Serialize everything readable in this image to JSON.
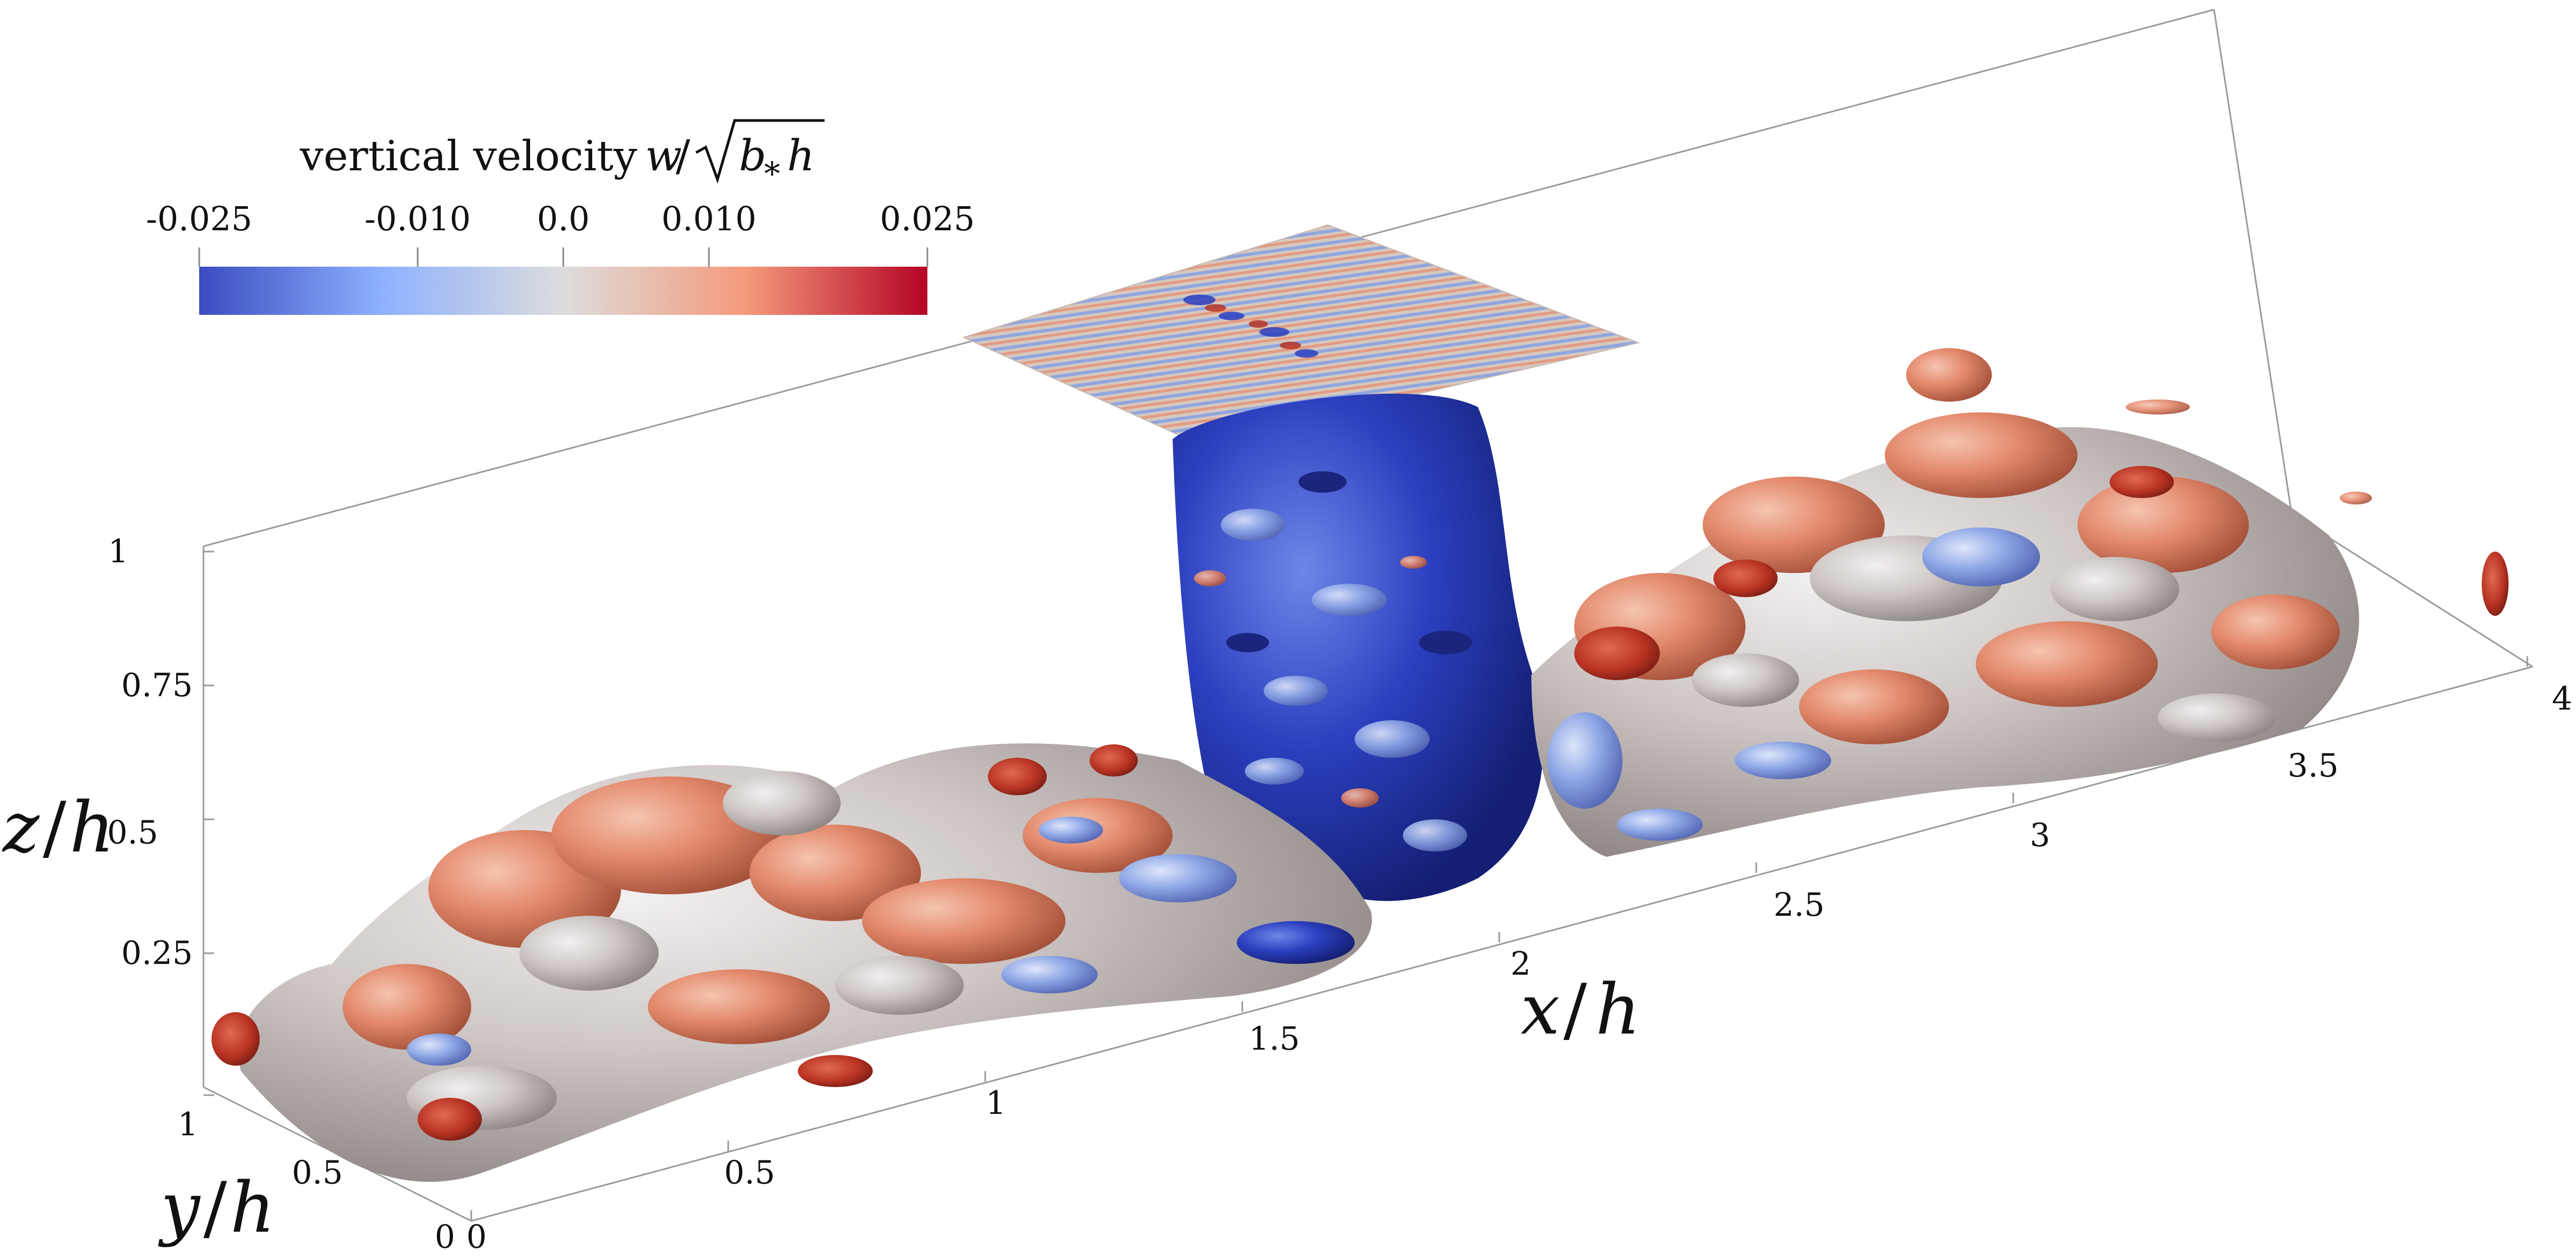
{
  "colorbar": {
    "title_text": "vertical velocity",
    "title_symbol_w": "w",
    "title_symbol_b": "b",
    "title_symbol_star": "*",
    "title_symbol_h": "h",
    "ticks": [
      "-0.025",
      "-0.010",
      "0.0",
      "0.010",
      "0.025"
    ],
    "tick_values": [
      -0.025,
      -0.01,
      0.0,
      0.01,
      0.025
    ],
    "range": [
      -0.025,
      0.025
    ],
    "colors": [
      "#3b4cc0",
      "#8db0fe",
      "#dddddd",
      "#f49a7b",
      "#b40426"
    ]
  },
  "axes": {
    "x_label_var": "x",
    "x_label_unit": "h",
    "y_label_var": "y",
    "y_label_unit": "h",
    "z_label_var": "z",
    "z_label_unit": "h",
    "x_ticks": [
      "0",
      "0.5",
      "1",
      "1.5",
      "2",
      "2.5",
      "3",
      "3.5",
      "4"
    ],
    "y_ticks": [
      "0",
      "0.5",
      "1"
    ],
    "z_ticks": [
      "0.25",
      "0.5",
      "0.75",
      "1"
    ]
  },
  "scene_colors": {
    "gray": "#cdc6c4",
    "salmon": "#e3886a",
    "red": "#b93322",
    "light_blue": "#8fa8e6",
    "blue": "#2b3fbf",
    "dark_blue": "#1f2f9f"
  }
}
